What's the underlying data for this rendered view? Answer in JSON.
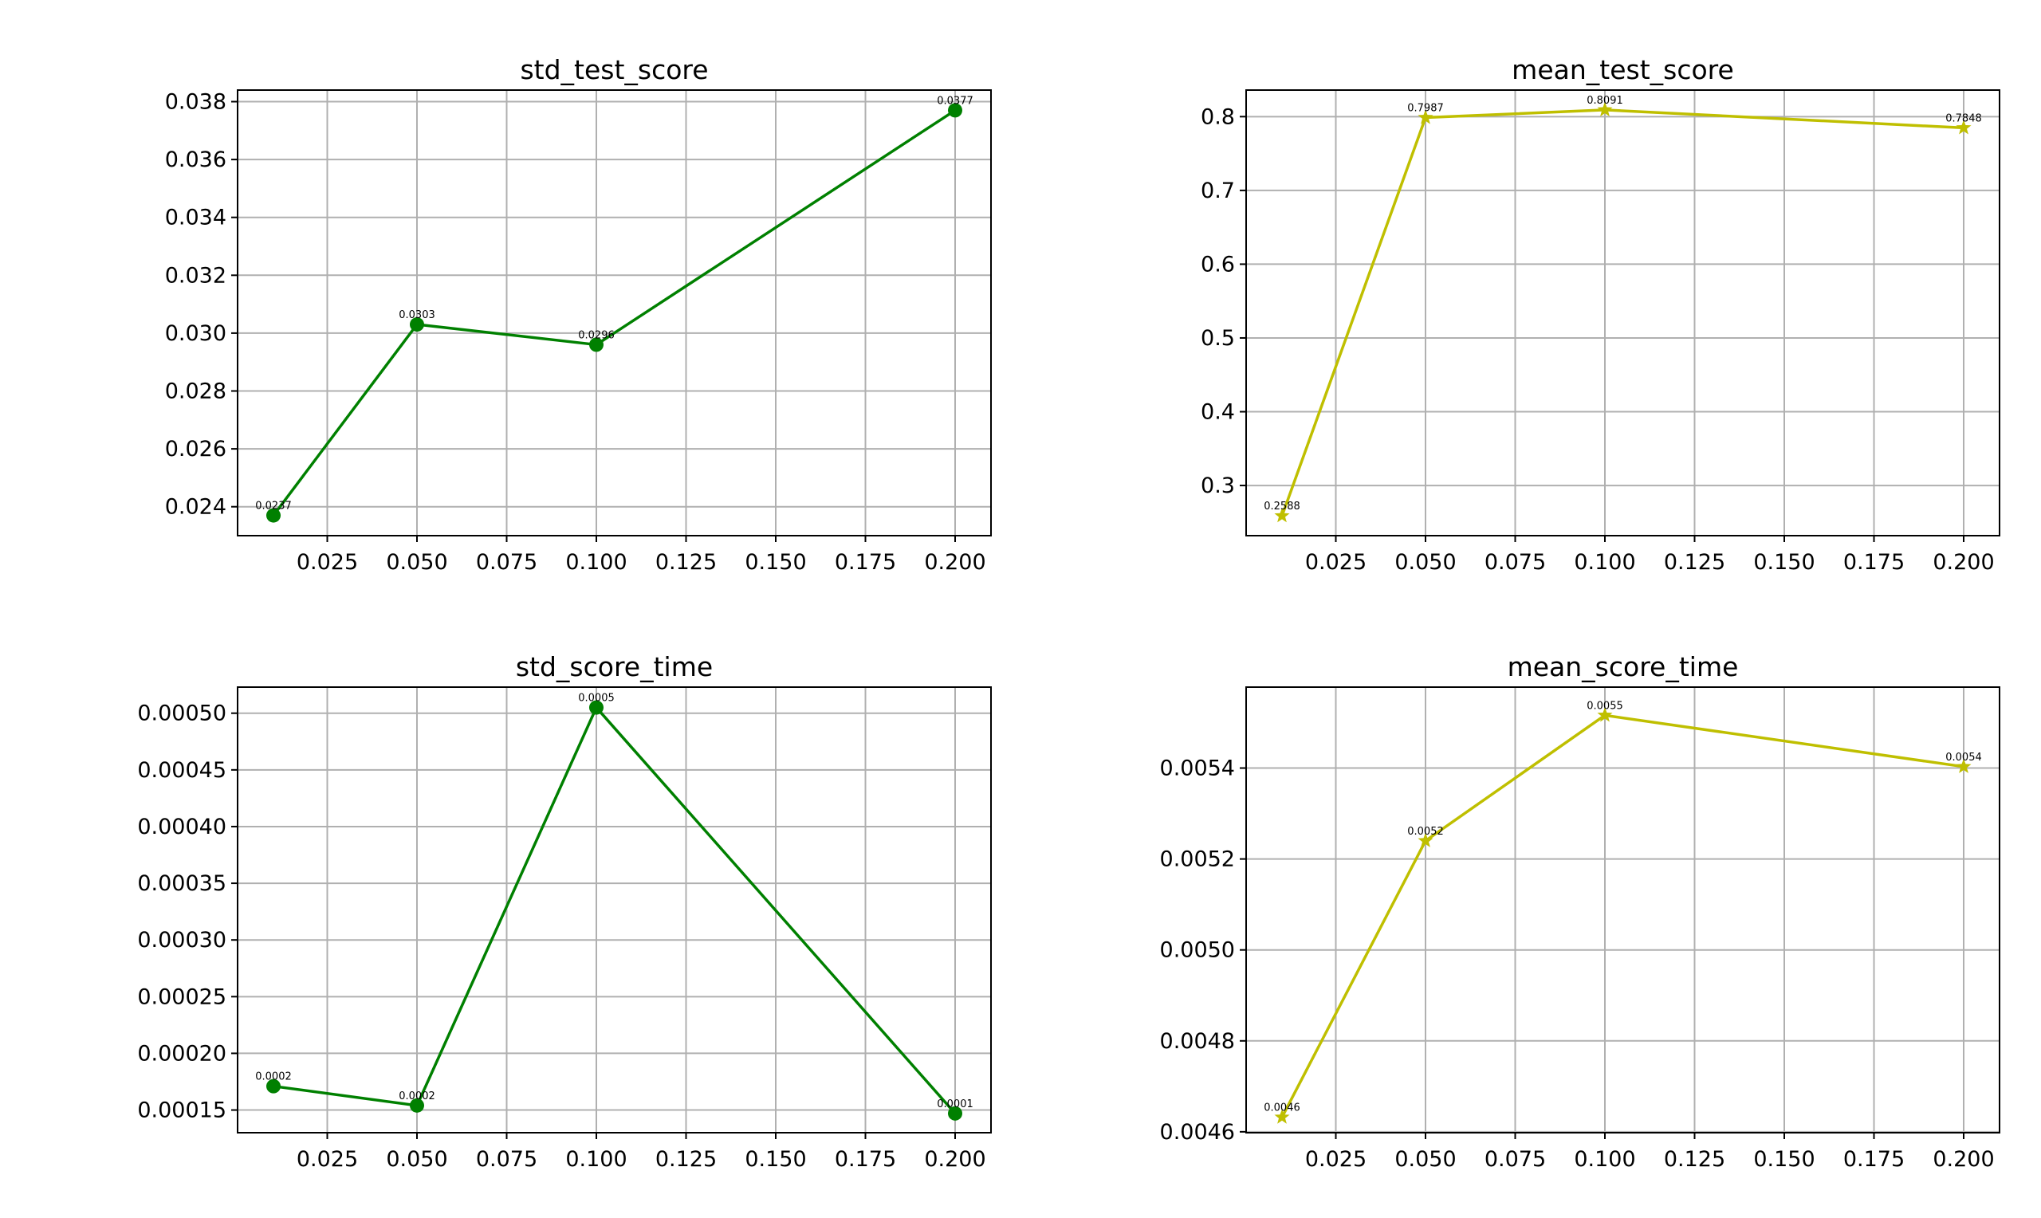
{
  "chart_data": [
    {
      "type": "line",
      "title": "std_test_score",
      "xlabel": "",
      "ylabel": "",
      "color": "#008000",
      "marker": "circle",
      "x": [
        0.01,
        0.05,
        0.1,
        0.2
      ],
      "series": [
        {
          "values": [
            0.0237,
            0.0303,
            0.0296,
            0.0377
          ]
        }
      ],
      "data_labels": [
        "0.0237",
        "0.0303",
        "0.0296",
        "0.0377"
      ],
      "xlim": [
        -0.0,
        0.21
      ],
      "ylim": [
        0.023,
        0.0384
      ],
      "xticks": [
        0.025,
        0.05,
        0.075,
        0.1,
        0.125,
        0.15,
        0.175,
        0.2
      ],
      "xtick_labels": [
        "0.025",
        "0.050",
        "0.075",
        "0.100",
        "0.125",
        "0.150",
        "0.175",
        "0.200"
      ],
      "yticks": [
        0.024,
        0.026,
        0.028,
        0.03,
        0.032,
        0.034,
        0.036,
        0.038
      ],
      "ytick_labels": [
        "0.024",
        "0.026",
        "0.028",
        "0.030",
        "0.032",
        "0.034",
        "0.036",
        "0.038"
      ],
      "grid": true
    },
    {
      "type": "line",
      "title": "mean_test_score",
      "xlabel": "",
      "ylabel": "",
      "color": "#bfbf00",
      "marker": "star",
      "x": [
        0.01,
        0.05,
        0.1,
        0.2
      ],
      "series": [
        {
          "values": [
            0.2588,
            0.7987,
            0.8091,
            0.7848
          ]
        }
      ],
      "data_labels": [
        "0.2588",
        "0.7987",
        "0.8091",
        "0.7848"
      ],
      "xlim": [
        -0.0,
        0.21
      ],
      "ylim": [
        0.232,
        0.836
      ],
      "xticks": [
        0.025,
        0.05,
        0.075,
        0.1,
        0.125,
        0.15,
        0.175,
        0.2
      ],
      "xtick_labels": [
        "0.025",
        "0.050",
        "0.075",
        "0.100",
        "0.125",
        "0.150",
        "0.175",
        "0.200"
      ],
      "yticks": [
        0.3,
        0.4,
        0.5,
        0.6,
        0.7,
        0.8
      ],
      "ytick_labels": [
        "0.3",
        "0.4",
        "0.5",
        "0.6",
        "0.7",
        "0.8"
      ],
      "grid": true
    },
    {
      "type": "line",
      "title": "std_score_time",
      "xlabel": "",
      "ylabel": "",
      "color": "#008000",
      "marker": "circle",
      "x": [
        0.01,
        0.05,
        0.1,
        0.2
      ],
      "series": [
        {
          "values": [
            0.000171,
            0.000154,
            0.000505,
            0.000147
          ]
        }
      ],
      "data_labels": [
        "0.0002",
        "0.0002",
        "0.0005",
        "0.0001"
      ],
      "xlim": [
        -0.0,
        0.21
      ],
      "ylim": [
        0.00013,
        0.000523
      ],
      "xticks": [
        0.025,
        0.05,
        0.075,
        0.1,
        0.125,
        0.15,
        0.175,
        0.2
      ],
      "xtick_labels": [
        "0.025",
        "0.050",
        "0.075",
        "0.100",
        "0.125",
        "0.150",
        "0.175",
        "0.200"
      ],
      "yticks": [
        0.00015,
        0.0002,
        0.00025,
        0.0003,
        0.00035,
        0.0004,
        0.00045,
        0.0005
      ],
      "ytick_labels": [
        "0.00015",
        "0.00020",
        "0.00025",
        "0.00030",
        "0.00035",
        "0.00040",
        "0.00045",
        "0.00050"
      ],
      "grid": true
    },
    {
      "type": "line",
      "title": "mean_score_time",
      "xlabel": "",
      "ylabel": "",
      "color": "#bfbf00",
      "marker": "star",
      "x": [
        0.01,
        0.05,
        0.1,
        0.2
      ],
      "series": [
        {
          "values": [
            0.004632,
            0.00524,
            0.005516,
            0.005403
          ]
        }
      ],
      "data_labels": [
        "0.0046",
        "0.0052",
        "0.0055",
        "0.0054"
      ],
      "xlim": [
        -0.0,
        0.21
      ],
      "ylim": [
        0.004598,
        0.005578
      ],
      "xticks": [
        0.025,
        0.05,
        0.075,
        0.1,
        0.125,
        0.15,
        0.175,
        0.2
      ],
      "xtick_labels": [
        "0.025",
        "0.050",
        "0.075",
        "0.100",
        "0.125",
        "0.150",
        "0.175",
        "0.200"
      ],
      "yticks": [
        0.0046,
        0.0048,
        0.005,
        0.0052,
        0.0054
      ],
      "ytick_labels": [
        "0.0046",
        "0.0048",
        "0.0050",
        "0.0052",
        "0.0054"
      ],
      "grid": true
    }
  ]
}
